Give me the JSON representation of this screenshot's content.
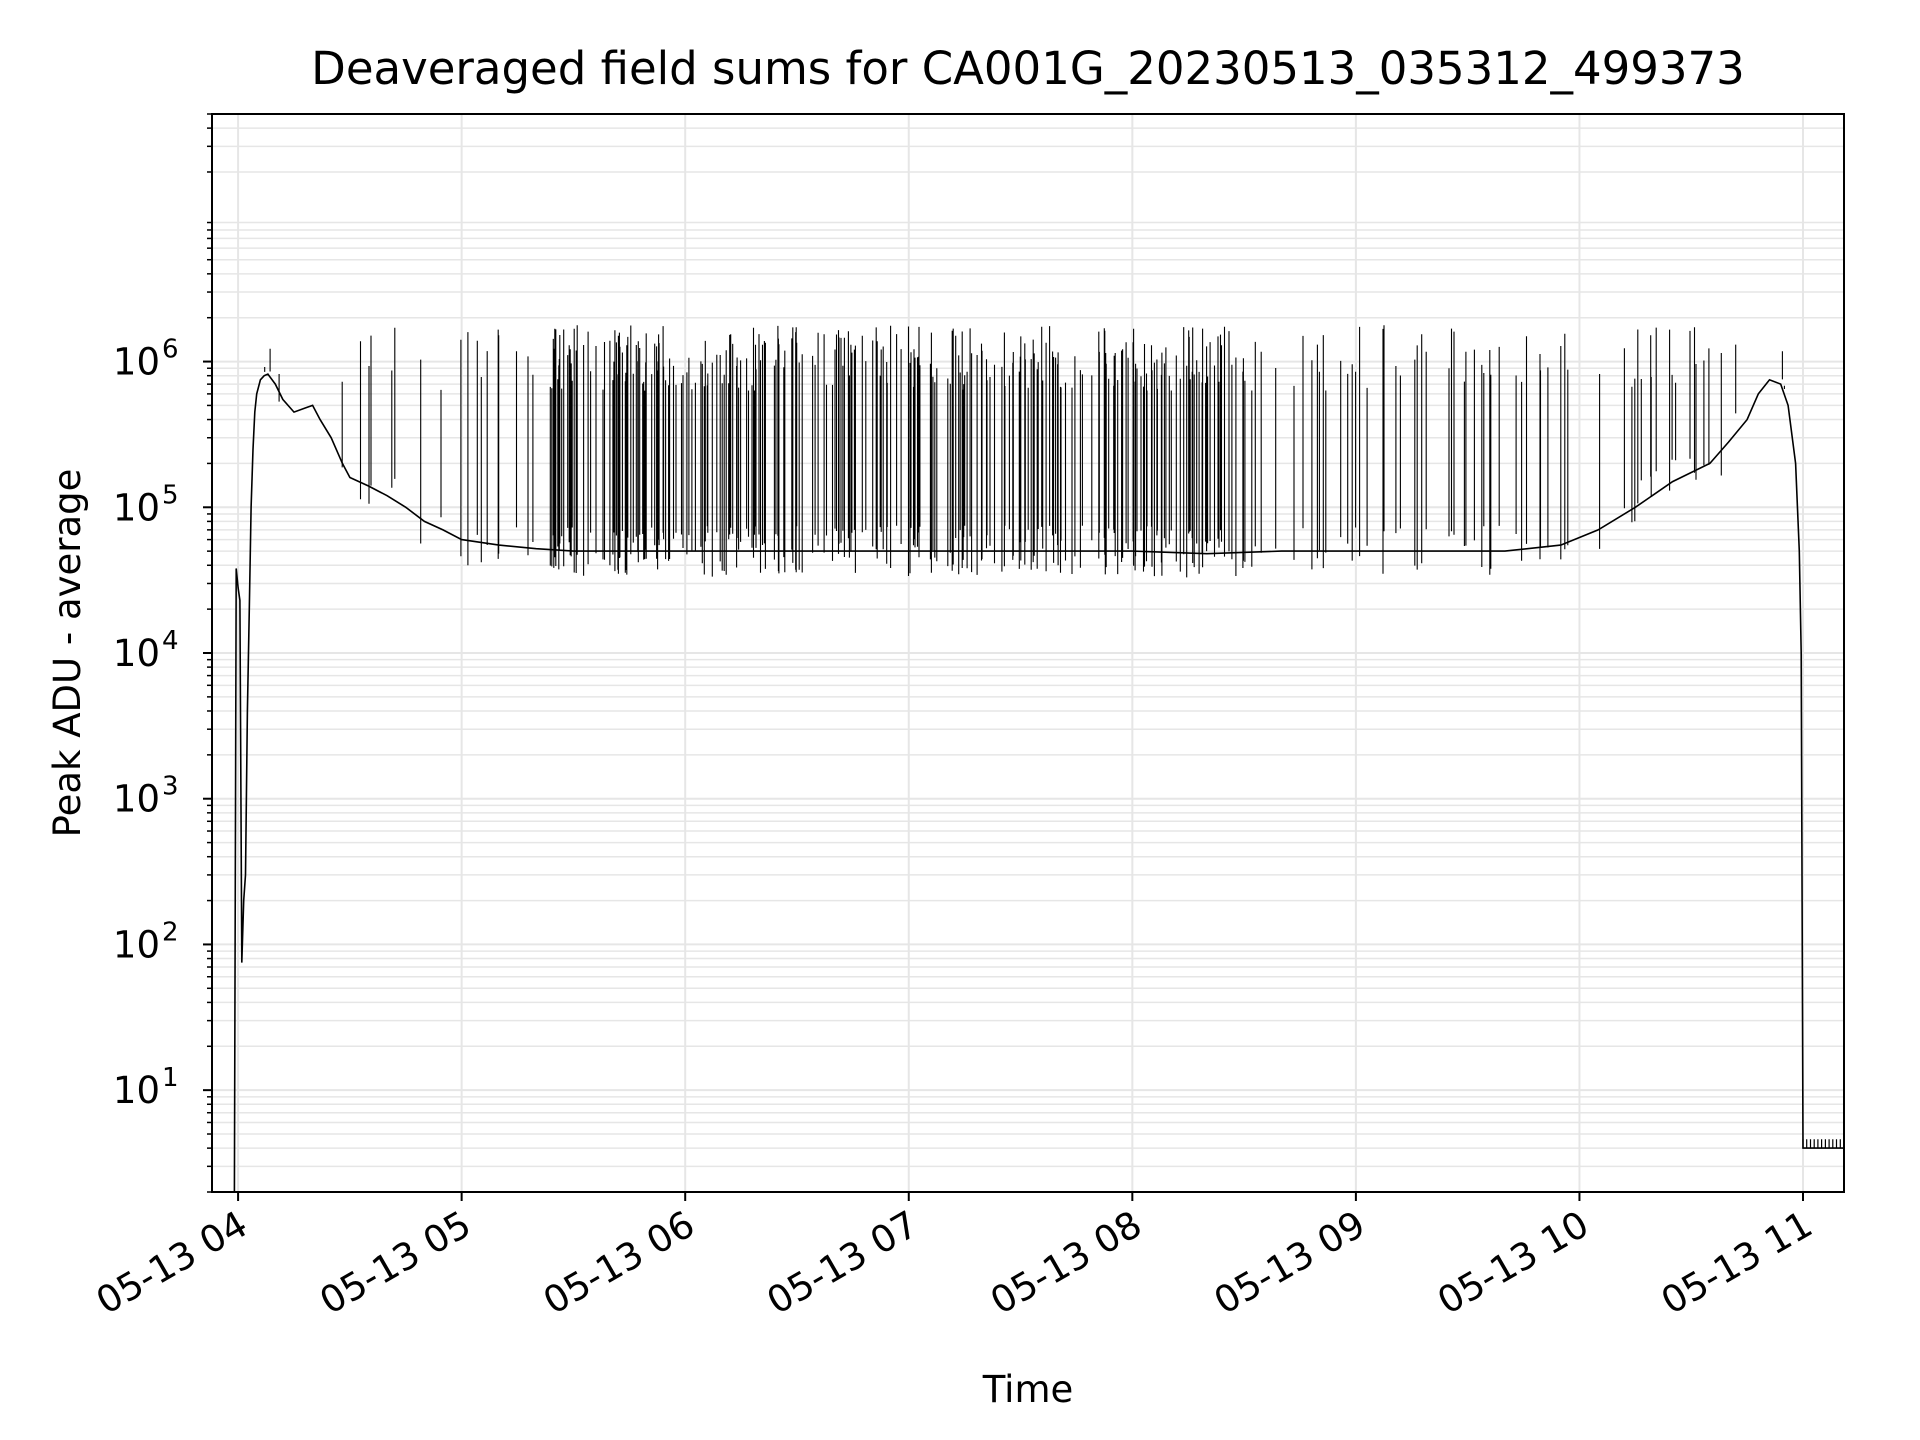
{
  "chart_data": {
    "type": "line",
    "title": "Deaveraged field sums for CA001G_20230513_035312_499373",
    "xlabel": "Time",
    "ylabel": "Peak ADU - average",
    "yscale": "log",
    "ylim": [
      2,
      50000000
    ],
    "xlim": [
      "2023-05-13T03:53:00",
      "2023-05-13T11:11:00"
    ],
    "grid": true,
    "x_ticks": [
      {
        "x": "2023-05-13T04:00",
        "label": "05-13 04"
      },
      {
        "x": "2023-05-13T05:00",
        "label": "05-13 05"
      },
      {
        "x": "2023-05-13T06:00",
        "label": "05-13 06"
      },
      {
        "x": "2023-05-13T07:00",
        "label": "05-13 07"
      },
      {
        "x": "2023-05-13T08:00",
        "label": "05-13 08"
      },
      {
        "x": "2023-05-13T09:00",
        "label": "05-13 09"
      },
      {
        "x": "2023-05-13T10:00",
        "label": "05-13 10"
      },
      {
        "x": "2023-05-13T11:00",
        "label": "05-13 11"
      }
    ],
    "y_ticks": [
      {
        "value": 10,
        "label_base": "10",
        "label_exp": "1"
      },
      {
        "value": 100,
        "label_base": "10",
        "label_exp": "2"
      },
      {
        "value": 1000,
        "label_base": "10",
        "label_exp": "3"
      },
      {
        "value": 10000,
        "label_base": "10",
        "label_exp": "4"
      },
      {
        "value": 100000,
        "label_base": "10",
        "label_exp": "5"
      },
      {
        "value": 1000000,
        "label_base": "10",
        "label_exp": "6"
      }
    ],
    "line_color": "#000000",
    "grid_color": "#e6e6e6",
    "series": [
      {
        "x": [
          "2023-05-13T03:59:00",
          "2023-05-13T03:59:30",
          "2023-05-13T04:00:00",
          "2023-05-13T04:00:30",
          "2023-05-13T04:01:00",
          "2023-05-13T04:01:30",
          "2023-05-13T04:02:00",
          "2023-05-13T04:02:30",
          "2023-05-13T04:03:00",
          "2023-05-13T04:03:30",
          "2023-05-13T04:04:00",
          "2023-05-13T04:04:30",
          "2023-05-13T04:05:00",
          "2023-05-13T04:06:00",
          "2023-05-13T04:07:00",
          "2023-05-13T04:08:00",
          "2023-05-13T04:10:00",
          "2023-05-13T04:12:00",
          "2023-05-13T04:15:00",
          "2023-05-13T04:18:00",
          "2023-05-13T04:20:00",
          "2023-05-13T04:22:00",
          "2023-05-13T04:25:00",
          "2023-05-13T04:28:00",
          "2023-05-13T04:30:00",
          "2023-05-13T04:35:00",
          "2023-05-13T04:40:00",
          "2023-05-13T04:45:00",
          "2023-05-13T04:50:00",
          "2023-05-13T04:55:00",
          "2023-05-13T05:00:00",
          "2023-05-13T05:10:00",
          "2023-05-13T05:20:00",
          "2023-05-13T05:30:00",
          "2023-05-13T05:40:00",
          "2023-05-13T06:00:00",
          "2023-05-13T06:30:00",
          "2023-05-13T07:00:00",
          "2023-05-13T07:30:00",
          "2023-05-13T08:00:00",
          "2023-05-13T08:20:00",
          "2023-05-13T08:40:00",
          "2023-05-13T09:00:00",
          "2023-05-13T09:20:00",
          "2023-05-13T09:40:00",
          "2023-05-13T09:55:00",
          "2023-05-13T10:05:00",
          "2023-05-13T10:15:00",
          "2023-05-13T10:25:00",
          "2023-05-13T10:35:00",
          "2023-05-13T10:40:00",
          "2023-05-13T10:45:00",
          "2023-05-13T10:48:00",
          "2023-05-13T10:51:00",
          "2023-05-13T10:54:00",
          "2023-05-13T10:56:00",
          "2023-05-13T10:58:00",
          "2023-05-13T10:59:00",
          "2023-05-13T10:59:30",
          "2023-05-13T11:00:00",
          "2023-05-13T11:11:00"
        ],
        "y": [
          2,
          38000,
          28000,
          23000,
          75,
          200,
          300,
          4000,
          20000,
          100000,
          250000,
          450000,
          600000,
          750000,
          800000,
          820000,
          700000,
          550000,
          450000,
          480000,
          500000,
          400000,
          300000,
          200000,
          160000,
          140000,
          120000,
          100000,
          80000,
          70000,
          60000,
          55000,
          52000,
          50000,
          50000,
          50000,
          50000,
          50000,
          50000,
          50000,
          48000,
          50000,
          50000,
          50000,
          50000,
          55000,
          70000,
          100000,
          150000,
          200000,
          280000,
          400000,
          600000,
          750000,
          700000,
          500000,
          200000,
          50000,
          10000,
          4,
          4
        ]
      }
    ]
  }
}
